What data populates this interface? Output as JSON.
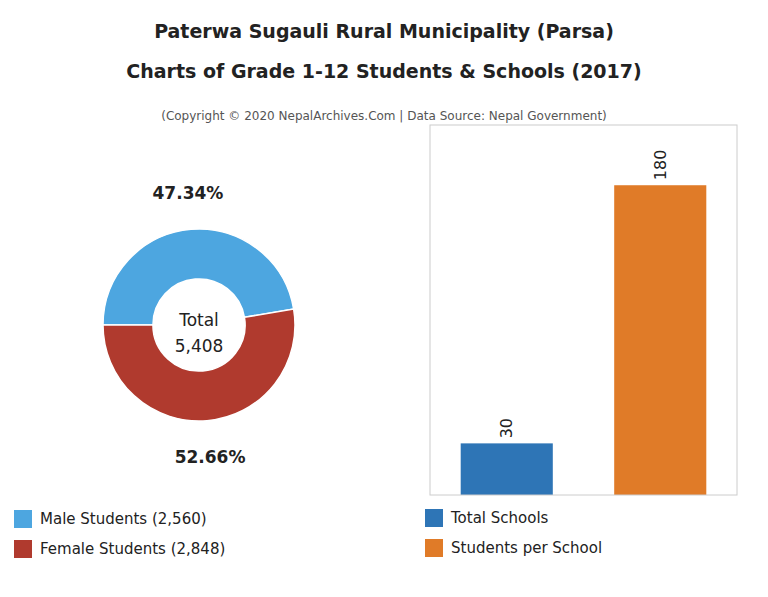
{
  "chart_data": [
    {
      "type": "donut",
      "title": "Paterwa Sugauli Rural Municipality (Parsa)\nCharts of Grade 1-12 Students & Schools (2017)",
      "subtitle": "(Copyright © 2020 NepalArchives.Com | Data Source: Nepal Government)",
      "categories": [
        "Male Students (2,560)",
        "Female Students (2,848)"
      ],
      "values": [
        47.34,
        52.66
      ],
      "value_labels": [
        "47.34%",
        "52.66%"
      ],
      "colors": [
        "#4da6e0",
        "#b03a2e"
      ],
      "data_labels": true,
      "legend": "bottom",
      "annotations": [
        "Total",
        "5,408"
      ]
    },
    {
      "type": "bar",
      "categories": [
        "Total Schools",
        "Students per School"
      ],
      "values": [
        30,
        180
      ],
      "colors": [
        "#2e75b6",
        "#e07b28"
      ],
      "ylim": [
        0,
        215
      ],
      "tick_labels": false,
      "grid": false,
      "data_labels": true,
      "legend": "bottom"
    }
  ]
}
